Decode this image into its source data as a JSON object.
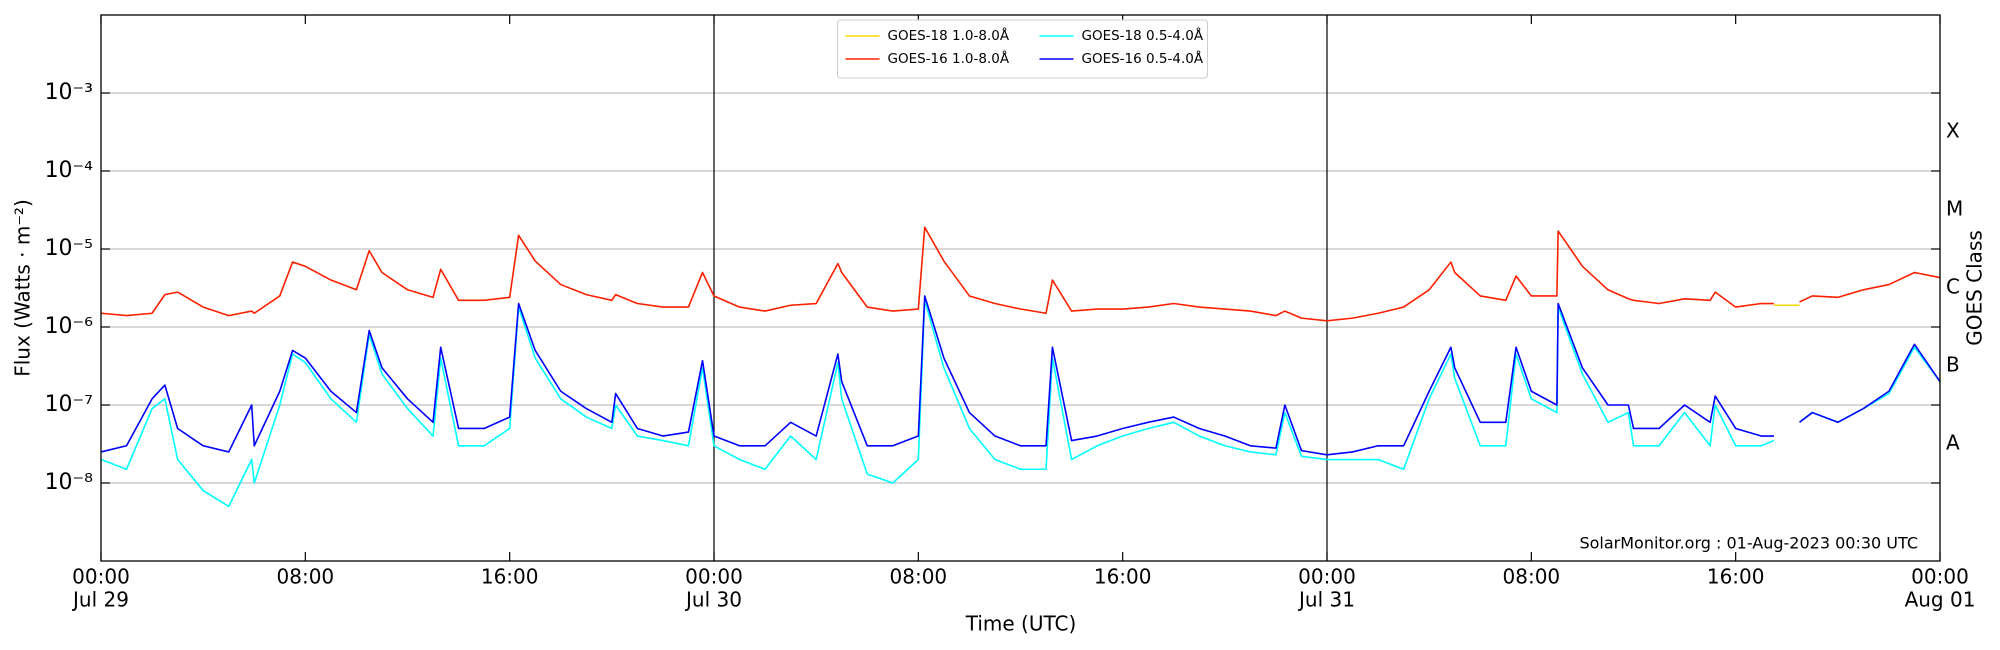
{
  "chart_data": {
    "type": "line",
    "xlabel": "Time (UTC)",
    "ylabel": "Flux (Watts · m⁻²)",
    "y2label": "GOES Class",
    "annotation": "SolarMonitor.org : 01-Aug-2023 00:30 UTC",
    "log_y": true,
    "grid": true,
    "legend": "upper center",
    "xlim": [
      "Jul 29 00:00",
      "Aug 01 00:00"
    ],
    "xticks": [
      {
        "value": "Jul 29 00:00",
        "label": [
          "00:00",
          "Jul 29"
        ]
      },
      {
        "value": "Jul 29 08:00",
        "label": [
          "08:00"
        ]
      },
      {
        "value": "Jul 29 16:00",
        "label": [
          "16:00"
        ]
      },
      {
        "value": "Jul 30 00:00",
        "label": [
          "00:00",
          "Jul 30"
        ]
      },
      {
        "value": "Jul 30 08:00",
        "label": [
          "08:00"
        ]
      },
      {
        "value": "Jul 30 16:00",
        "label": [
          "16:00"
        ]
      },
      {
        "value": "Jul 31 00:00",
        "label": [
          "00:00",
          "Jul 31"
        ]
      },
      {
        "value": "Jul 31 08:00",
        "label": [
          "08:00"
        ]
      },
      {
        "value": "Jul 31 16:00",
        "label": [
          "16:00"
        ]
      },
      {
        "value": "Aug 01 00:00",
        "label": [
          "00:00",
          "Aug 01"
        ]
      }
    ],
    "vlines": [
      "Jul 30 00:00",
      "Jul 31 00:00"
    ],
    "ylim": [
      1e-09,
      0.01
    ],
    "yticks": [
      {
        "value": 1e-08,
        "label": "10⁻⁸"
      },
      {
        "value": 1e-07,
        "label": "10⁻⁷"
      },
      {
        "value": 1e-06,
        "label": "10⁻⁶"
      },
      {
        "value": 1e-05,
        "label": "10⁻⁵"
      },
      {
        "value": 0.0001,
        "label": "10⁻⁴"
      },
      {
        "value": 0.001,
        "label": "10⁻³"
      }
    ],
    "y2lim": [
      1e-09,
      0.01
    ],
    "y2ticks": [
      {
        "value": 3.162e-08,
        "label": "A"
      },
      {
        "value": 3.162e-07,
        "label": "B"
      },
      {
        "value": 3.162e-06,
        "label": "C"
      },
      {
        "value": 3.162e-05,
        "label": "M"
      },
      {
        "value": 0.0003162,
        "label": "X"
      }
    ],
    "x": [
      "Jul 29 00:00",
      "Jul 29 01:00",
      "Jul 29 02:00",
      "Jul 29 02:30",
      "Jul 29 03:00",
      "Jul 29 04:00",
      "Jul 29 05:00",
      "Jul 29 05:54",
      "Jul 29 06:00",
      "Jul 29 07:00",
      "Jul 29 07:30",
      "Jul 29 08:00",
      "Jul 29 09:00",
      "Jul 29 10:00",
      "Jul 29 10:30",
      "Jul 29 11:00",
      "Jul 29 12:00",
      "Jul 29 13:00",
      "Jul 29 13:18",
      "Jul 29 14:00",
      "Jul 29 15:00",
      "Jul 29 16:00",
      "Jul 29 16:21",
      "Jul 29 17:00",
      "Jul 29 18:00",
      "Jul 29 19:00",
      "Jul 29 20:00",
      "Jul 29 20:09",
      "Jul 29 21:00",
      "Jul 29 22:00",
      "Jul 29 23:00",
      "Jul 29 23:33",
      "Jul 30 00:00",
      "Jul 30 01:00",
      "Jul 30 02:00",
      "Jul 30 03:00",
      "Jul 30 04:00",
      "Jul 30 04:51",
      "Jul 30 05:00",
      "Jul 30 06:00",
      "Jul 30 07:00",
      "Jul 30 08:00",
      "Jul 30 08:15",
      "Jul 30 09:00",
      "Jul 30 10:00",
      "Jul 30 11:00",
      "Jul 30 12:00",
      "Jul 30 13:00",
      "Jul 30 13:15",
      "Jul 30 14:00",
      "Jul 30 15:00",
      "Jul 30 16:00",
      "Jul 30 17:00",
      "Jul 30 18:00",
      "Jul 30 19:00",
      "Jul 30 20:00",
      "Jul 30 21:00",
      "Jul 30 22:00",
      "Jul 30 22:21",
      "Jul 30 23:00",
      "Jul 31 00:00",
      "Jul 31 01:00",
      "Jul 31 02:00",
      "Jul 31 03:00",
      "Jul 31 04:00",
      "Jul 31 04:51",
      "Jul 31 05:00",
      "Jul 31 06:00",
      "Jul 31 07:00",
      "Jul 31 07:24",
      "Jul 31 08:00",
      "Jul 31 09:00",
      "Jul 31 09:03",
      "Jul 31 10:00",
      "Jul 31 11:00",
      "Jul 31 11:48",
      "Jul 31 12:00",
      "Jul 31 13:00",
      "Jul 31 14:00",
      "Jul 31 15:00",
      "Jul 31 15:12",
      "Jul 31 16:00",
      "Jul 31 17:00",
      "Jul 31 17:30",
      "Jul 31 18:00",
      "Jul 31 18:30",
      "Jul 31 19:00",
      "Jul 31 20:00",
      "Jul 31 21:00",
      "Jul 31 22:00",
      "Jul 31 23:00",
      "Aug 01 00:00"
    ],
    "series": [
      {
        "name": "GOES-18 1.0-8.0Å",
        "color": "#ffd700",
        "values": [
          null,
          null,
          null,
          null,
          null,
          null,
          null,
          null,
          null,
          null,
          null,
          null,
          null,
          null,
          null,
          null,
          null,
          null,
          null,
          null,
          null,
          null,
          null,
          null,
          null,
          null,
          null,
          null,
          null,
          null,
          null,
          null,
          null,
          null,
          null,
          null,
          null,
          null,
          null,
          null,
          null,
          null,
          null,
          null,
          null,
          null,
          null,
          null,
          null,
          null,
          null,
          null,
          null,
          null,
          null,
          null,
          null,
          null,
          null,
          null,
          null,
          null,
          null,
          null,
          null,
          null,
          null,
          null,
          null,
          null,
          null,
          null,
          null,
          null,
          null,
          null,
          null,
          null,
          null,
          null,
          null,
          null,
          null,
          1.9e-06,
          1.9e-06,
          1.9e-06,
          null,
          null,
          null,
          null,
          null,
          null
        ]
      },
      {
        "name": "GOES-16 1.0-8.0Å",
        "color": "#ff2000",
        "values": [
          1.5e-06,
          1.4e-06,
          1.5e-06,
          2.6e-06,
          2.8e-06,
          1.8e-06,
          1.4e-06,
          1.6e-06,
          1.5e-06,
          2.5e-06,
          6.8e-06,
          6e-06,
          4e-06,
          3e-06,
          9.5e-06,
          5e-06,
          3e-06,
          2.4e-06,
          5.5e-06,
          2.2e-06,
          2.2e-06,
          2.4e-06,
          1.5e-05,
          7e-06,
          3.5e-06,
          2.6e-06,
          2.2e-06,
          2.6e-06,
          2e-06,
          1.8e-06,
          1.8e-06,
          5e-06,
          2.5e-06,
          1.8e-06,
          1.6e-06,
          1.9e-06,
          2e-06,
          6.5e-06,
          5e-06,
          1.8e-06,
          1.6e-06,
          1.7e-06,
          1.9e-05,
          7e-06,
          2.5e-06,
          2e-06,
          1.7e-06,
          1.5e-06,
          4e-06,
          1.6e-06,
          1.7e-06,
          1.7e-06,
          1.8e-06,
          2e-06,
          1.8e-06,
          1.7e-06,
          1.6e-06,
          1.4e-06,
          1.6e-06,
          1.3e-06,
          1.2e-06,
          1.3e-06,
          1.5e-06,
          1.8e-06,
          3e-06,
          6.8e-06,
          5e-06,
          2.5e-06,
          2.2e-06,
          4.5e-06,
          2.5e-06,
          2.5e-06,
          1.7e-05,
          6e-06,
          3e-06,
          2.3e-06,
          2.2e-06,
          2e-06,
          2.3e-06,
          2.2e-06,
          2.8e-06,
          1.8e-06,
          2e-06,
          2e-06,
          null,
          2.1e-06,
          2.5e-06,
          2.4e-06,
          3e-06,
          3.5e-06,
          5e-06,
          4.3e-06
        ]
      },
      {
        "name": "GOES-18 0.5-4.0Å",
        "color": "#00ffff",
        "values": [
          2e-08,
          1.5e-08,
          9e-08,
          1.2e-07,
          2e-08,
          8e-09,
          5e-09,
          2e-08,
          1e-08,
          1e-07,
          4.5e-07,
          3.5e-07,
          1.2e-07,
          6e-08,
          8e-07,
          2.5e-07,
          9e-08,
          4e-08,
          4e-07,
          3e-08,
          3e-08,
          5e-08,
          1.8e-06,
          4e-07,
          1.2e-07,
          7e-08,
          5e-08,
          1e-07,
          4e-08,
          3.5e-08,
          3e-08,
          3e-07,
          3e-08,
          2e-08,
          1.5e-08,
          4e-08,
          2e-08,
          3.5e-07,
          1.2e-07,
          1.3e-08,
          1e-08,
          2e-08,
          2.2e-06,
          3e-07,
          5e-08,
          2e-08,
          1.5e-08,
          1.5e-08,
          4e-07,
          2e-08,
          3e-08,
          4e-08,
          5e-08,
          6e-08,
          4e-08,
          3e-08,
          2.5e-08,
          2.3e-08,
          8e-08,
          2.2e-08,
          2e-08,
          2e-08,
          2e-08,
          1.5e-08,
          1.2e-07,
          4.5e-07,
          2.2e-07,
          3e-08,
          3e-08,
          4.5e-07,
          1.2e-07,
          8e-08,
          1.8e-06,
          2.5e-07,
          6e-08,
          8e-08,
          3e-08,
          3e-08,
          8e-08,
          3e-08,
          1e-07,
          3e-08,
          3e-08,
          3.5e-08,
          null,
          6e-08,
          8e-08,
          6e-08,
          9e-08,
          1.4e-07,
          5.5e-07,
          2e-07
        ]
      },
      {
        "name": "GOES-16 0.5-4.0Å",
        "color": "#0000ff",
        "values": [
          2.5e-08,
          3e-08,
          1.2e-07,
          1.8e-07,
          5e-08,
          3e-08,
          2.5e-08,
          1e-07,
          3e-08,
          1.5e-07,
          5e-07,
          4e-07,
          1.5e-07,
          8e-08,
          9e-07,
          3e-07,
          1.2e-07,
          6e-08,
          5.5e-07,
          5e-08,
          5e-08,
          7e-08,
          2e-06,
          5e-07,
          1.5e-07,
          9e-08,
          6e-08,
          1.4e-07,
          5e-08,
          4e-08,
          4.5e-08,
          3.7e-07,
          4e-08,
          3e-08,
          3e-08,
          6e-08,
          4e-08,
          4.5e-07,
          2e-07,
          3e-08,
          3e-08,
          4e-08,
          2.5e-06,
          4e-07,
          8e-08,
          4e-08,
          3e-08,
          3e-08,
          5.5e-07,
          3.5e-08,
          4e-08,
          5e-08,
          6e-08,
          7e-08,
          5e-08,
          4e-08,
          3e-08,
          2.8e-08,
          1e-07,
          2.6e-08,
          2.3e-08,
          2.5e-08,
          3e-08,
          3e-08,
          1.5e-07,
          5.5e-07,
          3e-07,
          6e-08,
          6e-08,
          5.5e-07,
          1.5e-07,
          1e-07,
          2e-06,
          3e-07,
          1e-07,
          1e-07,
          5e-08,
          5e-08,
          1e-07,
          6e-08,
          1.3e-07,
          5e-08,
          4e-08,
          4e-08,
          null,
          6e-08,
          8e-08,
          6e-08,
          9e-08,
          1.5e-07,
          6e-07,
          2e-07
        ]
      }
    ]
  }
}
